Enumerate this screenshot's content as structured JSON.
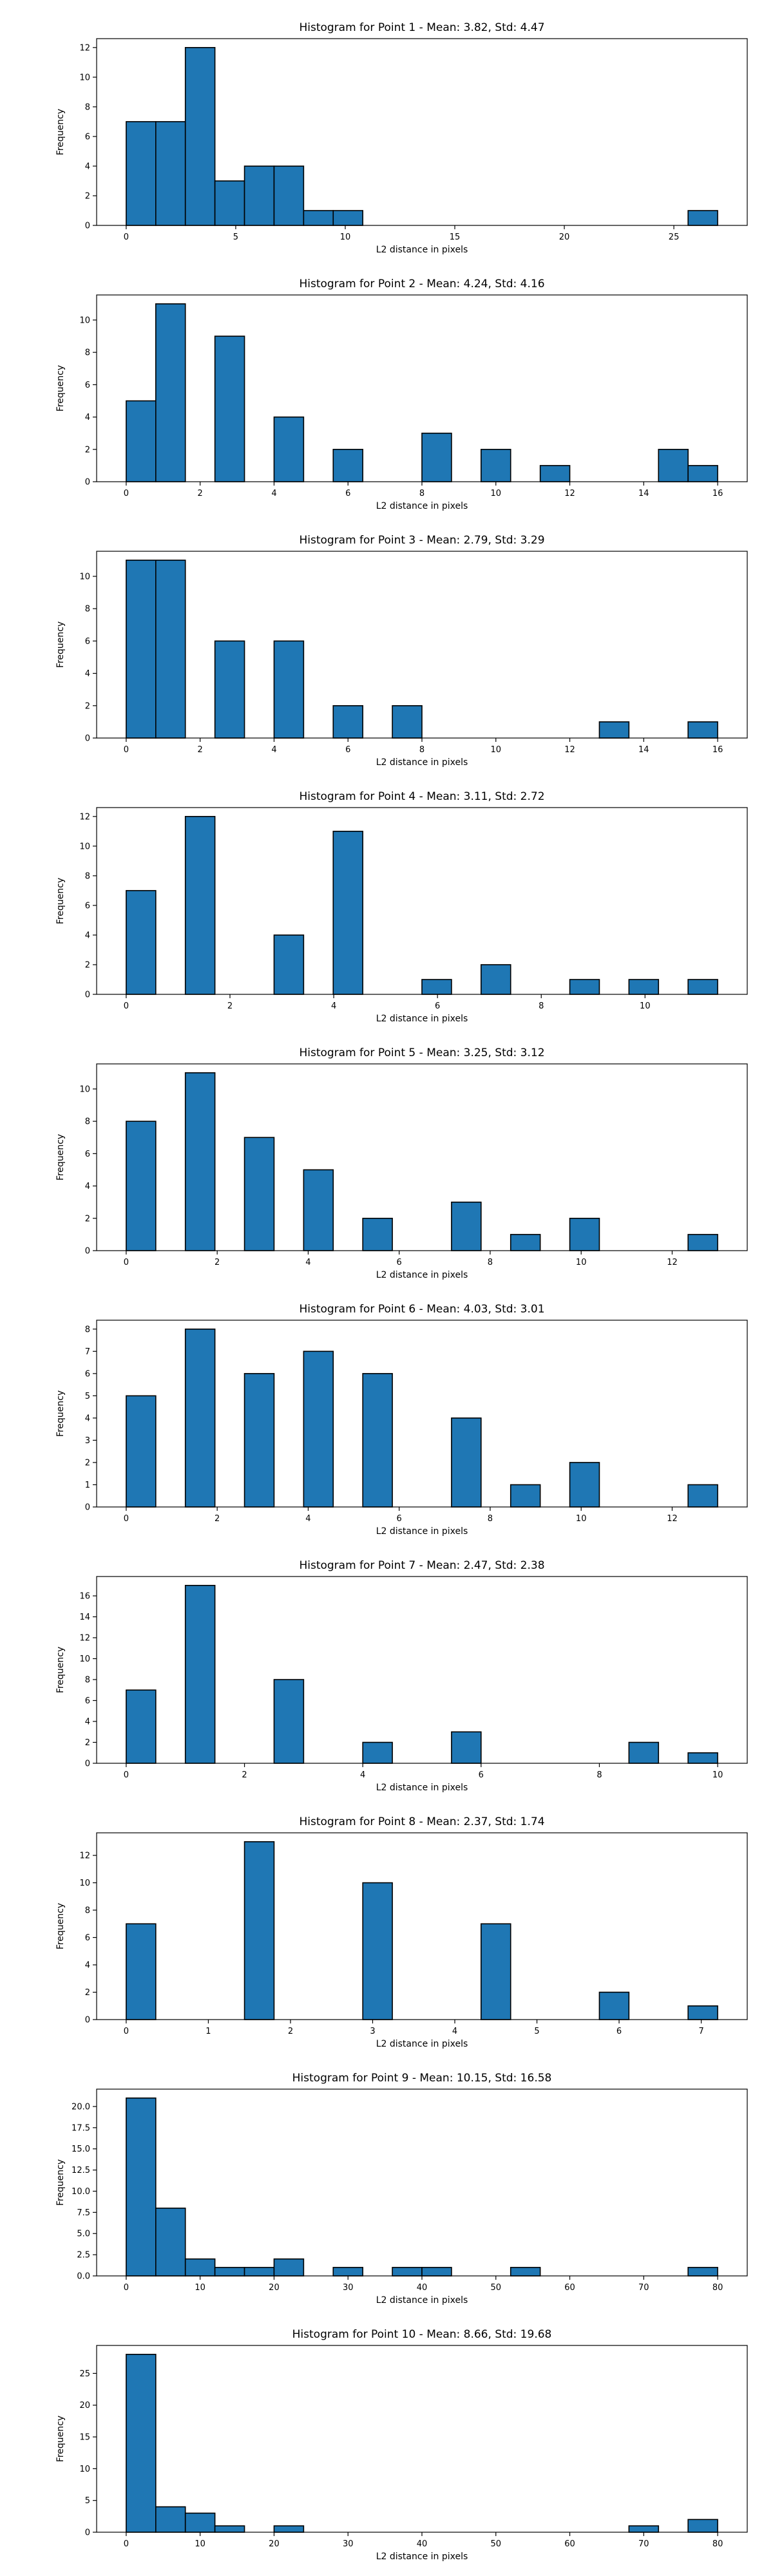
{
  "chart_data": [
    {
      "type": "bar",
      "title": "Histogram for Point 1 - Mean: 3.82, Std: 4.47",
      "xlabel": "L2 distance in pixels",
      "ylabel": "Frequency",
      "xlim": [
        -1.35,
        28.35
      ],
      "ylim": [
        0,
        12.6
      ],
      "xticks": [
        0,
        5,
        10,
        15,
        20,
        25
      ],
      "yticks": [
        0,
        2,
        4,
        6,
        8,
        10,
        12
      ],
      "bins": [
        {
          "x0": 0.0,
          "x1": 1.35,
          "count": 7
        },
        {
          "x0": 1.35,
          "x1": 2.7,
          "count": 7
        },
        {
          "x0": 2.7,
          "x1": 4.05,
          "count": 12
        },
        {
          "x0": 4.05,
          "x1": 5.4,
          "count": 3
        },
        {
          "x0": 5.4,
          "x1": 6.75,
          "count": 4
        },
        {
          "x0": 6.75,
          "x1": 8.1,
          "count": 4
        },
        {
          "x0": 8.1,
          "x1": 9.45,
          "count": 1
        },
        {
          "x0": 9.45,
          "x1": 10.8,
          "count": 1
        },
        {
          "x0": 25.65,
          "x1": 27.0,
          "count": 1
        }
      ]
    },
    {
      "type": "bar",
      "title": "Histogram for Point 2 - Mean: 4.24, Std: 4.16",
      "xlabel": "L2 distance in pixels",
      "ylabel": "Frequency",
      "xlim": [
        -0.8,
        16.8
      ],
      "ylim": [
        0,
        11.55
      ],
      "xticks": [
        0,
        2,
        4,
        6,
        8,
        10,
        12,
        14,
        16
      ],
      "yticks": [
        0,
        2,
        4,
        6,
        8,
        10
      ],
      "bins": [
        {
          "x0": 0.0,
          "x1": 0.8,
          "count": 5
        },
        {
          "x0": 0.8,
          "x1": 1.6,
          "count": 11
        },
        {
          "x0": 2.4,
          "x1": 3.2,
          "count": 9
        },
        {
          "x0": 4.0,
          "x1": 4.8,
          "count": 4
        },
        {
          "x0": 5.6,
          "x1": 6.4,
          "count": 2
        },
        {
          "x0": 8.0,
          "x1": 8.8,
          "count": 3
        },
        {
          "x0": 9.6,
          "x1": 10.4,
          "count": 2
        },
        {
          "x0": 11.2,
          "x1": 12.0,
          "count": 1
        },
        {
          "x0": 14.4,
          "x1": 15.2,
          "count": 2
        },
        {
          "x0": 15.2,
          "x1": 16.0,
          "count": 1
        }
      ]
    },
    {
      "type": "bar",
      "title": "Histogram for Point 3 - Mean: 2.79, Std: 3.29",
      "xlabel": "L2 distance in pixels",
      "ylabel": "Frequency",
      "xlim": [
        -0.8,
        16.8
      ],
      "ylim": [
        0,
        11.55
      ],
      "xticks": [
        0,
        2,
        4,
        6,
        8,
        10,
        12,
        14,
        16
      ],
      "yticks": [
        0,
        2,
        4,
        6,
        8,
        10
      ],
      "bins": [
        {
          "x0": 0.0,
          "x1": 0.8,
          "count": 11
        },
        {
          "x0": 0.8,
          "x1": 1.6,
          "count": 11
        },
        {
          "x0": 2.4,
          "x1": 3.2,
          "count": 6
        },
        {
          "x0": 4.0,
          "x1": 4.8,
          "count": 6
        },
        {
          "x0": 5.6,
          "x1": 6.4,
          "count": 2
        },
        {
          "x0": 7.2,
          "x1": 8.0,
          "count": 2
        },
        {
          "x0": 12.8,
          "x1": 13.6,
          "count": 1
        },
        {
          "x0": 15.2,
          "x1": 16.0,
          "count": 1
        }
      ]
    },
    {
      "type": "bar",
      "title": "Histogram for Point 4 - Mean: 3.11, Std: 2.72",
      "xlabel": "L2 distance in pixels",
      "ylabel": "Frequency",
      "xlim": [
        -0.57,
        11.97
      ],
      "ylim": [
        0,
        12.6
      ],
      "xticks": [
        0,
        2,
        4,
        6,
        8,
        10
      ],
      "yticks": [
        0,
        2,
        4,
        6,
        8,
        10,
        12
      ],
      "bins": [
        {
          "x0": 0.0,
          "x1": 0.57,
          "count": 7
        },
        {
          "x0": 1.14,
          "x1": 1.71,
          "count": 12
        },
        {
          "x0": 2.85,
          "x1": 3.42,
          "count": 4
        },
        {
          "x0": 3.99,
          "x1": 4.56,
          "count": 11
        },
        {
          "x0": 5.7,
          "x1": 6.27,
          "count": 1
        },
        {
          "x0": 6.84,
          "x1": 7.41,
          "count": 2
        },
        {
          "x0": 8.55,
          "x1": 9.12,
          "count": 1
        },
        {
          "x0": 9.69,
          "x1": 10.26,
          "count": 1
        },
        {
          "x0": 10.83,
          "x1": 11.4,
          "count": 1
        }
      ]
    },
    {
      "type": "bar",
      "title": "Histogram for Point 5 - Mean: 3.25, Std: 3.12",
      "xlabel": "L2 distance in pixels",
      "ylabel": "Frequency",
      "xlim": [
        -0.65,
        13.65
      ],
      "ylim": [
        0,
        11.55
      ],
      "xticks": [
        0,
        2,
        4,
        6,
        8,
        10,
        12
      ],
      "yticks": [
        0,
        2,
        4,
        6,
        8,
        10
      ],
      "bins": [
        {
          "x0": 0.0,
          "x1": 0.65,
          "count": 8
        },
        {
          "x0": 1.3,
          "x1": 1.95,
          "count": 11
        },
        {
          "x0": 2.6,
          "x1": 3.25,
          "count": 7
        },
        {
          "x0": 3.9,
          "x1": 4.55,
          "count": 5
        },
        {
          "x0": 5.2,
          "x1": 5.85,
          "count": 2
        },
        {
          "x0": 7.15,
          "x1": 7.8,
          "count": 3
        },
        {
          "x0": 8.45,
          "x1": 9.1,
          "count": 1
        },
        {
          "x0": 9.75,
          "x1": 10.4,
          "count": 2
        },
        {
          "x0": 12.35,
          "x1": 13.0,
          "count": 1
        }
      ]
    },
    {
      "type": "bar",
      "title": "Histogram for Point 6 - Mean: 4.03, Std: 3.01",
      "xlabel": "L2 distance in pixels",
      "ylabel": "Frequency",
      "xlim": [
        -0.65,
        13.65
      ],
      "ylim": [
        0,
        8.4
      ],
      "xticks": [
        0,
        2,
        4,
        6,
        8,
        10,
        12
      ],
      "yticks": [
        0,
        1,
        2,
        3,
        4,
        5,
        6,
        7,
        8
      ],
      "bins": [
        {
          "x0": 0.0,
          "x1": 0.65,
          "count": 5
        },
        {
          "x0": 1.3,
          "x1": 1.95,
          "count": 8
        },
        {
          "x0": 2.6,
          "x1": 3.25,
          "count": 6
        },
        {
          "x0": 3.9,
          "x1": 4.55,
          "count": 7
        },
        {
          "x0": 5.2,
          "x1": 5.85,
          "count": 6
        },
        {
          "x0": 7.15,
          "x1": 7.8,
          "count": 4
        },
        {
          "x0": 8.45,
          "x1": 9.1,
          "count": 1
        },
        {
          "x0": 9.75,
          "x1": 10.4,
          "count": 2
        },
        {
          "x0": 12.35,
          "x1": 13.0,
          "count": 1
        }
      ]
    },
    {
      "type": "bar",
      "title": "Histogram for Point 7 - Mean: 2.47, Std: 2.38",
      "xlabel": "L2 distance in pixels",
      "ylabel": "Frequency",
      "xlim": [
        -0.5,
        10.5
      ],
      "ylim": [
        0,
        17.85
      ],
      "xticks": [
        0,
        2,
        4,
        6,
        8,
        10
      ],
      "yticks": [
        0,
        2,
        4,
        6,
        8,
        10,
        12,
        14,
        16
      ],
      "bins": [
        {
          "x0": 0.0,
          "x1": 0.5,
          "count": 7
        },
        {
          "x0": 1.0,
          "x1": 1.5,
          "count": 17
        },
        {
          "x0": 2.5,
          "x1": 3.0,
          "count": 8
        },
        {
          "x0": 4.0,
          "x1": 4.5,
          "count": 2
        },
        {
          "x0": 5.5,
          "x1": 6.0,
          "count": 3
        },
        {
          "x0": 8.5,
          "x1": 9.0,
          "count": 2
        },
        {
          "x0": 9.5,
          "x1": 10.0,
          "count": 1
        }
      ]
    },
    {
      "type": "bar",
      "title": "Histogram for Point 8 - Mean: 2.37, Std: 1.74",
      "xlabel": "L2 distance in pixels",
      "ylabel": "Frequency",
      "xlim": [
        -0.36,
        7.56
      ],
      "ylim": [
        0,
        13.65
      ],
      "xticks": [
        0,
        1,
        2,
        3,
        4,
        5,
        6,
        7
      ],
      "yticks": [
        0,
        2,
        4,
        6,
        8,
        10,
        12
      ],
      "bins": [
        {
          "x0": 0.0,
          "x1": 0.36,
          "count": 7
        },
        {
          "x0": 1.44,
          "x1": 1.8,
          "count": 13
        },
        {
          "x0": 2.88,
          "x1": 3.24,
          "count": 10
        },
        {
          "x0": 4.32,
          "x1": 4.68,
          "count": 7
        },
        {
          "x0": 5.76,
          "x1": 6.12,
          "count": 2
        },
        {
          "x0": 6.84,
          "x1": 7.2,
          "count": 1
        }
      ]
    },
    {
      "type": "bar",
      "title": "Histogram for Point 9 - Mean: 10.15, Std: 16.58",
      "xlabel": "L2 distance in pixels",
      "ylabel": "Frequency",
      "xlim": [
        -4.0,
        84.0
      ],
      "ylim": [
        0,
        22.05
      ],
      "xticks": [
        0,
        10,
        20,
        30,
        40,
        50,
        60,
        70,
        80
      ],
      "yticks": [
        0,
        2.5,
        5.0,
        7.5,
        10.0,
        12.5,
        15.0,
        17.5,
        20.0
      ],
      "ytick_labels": [
        "0.0",
        "2.5",
        "5.0",
        "7.5",
        "10.0",
        "12.5",
        "15.0",
        "17.5",
        "20.0"
      ],
      "bins": [
        {
          "x0": 0.0,
          "x1": 4.0,
          "count": 21
        },
        {
          "x0": 4.0,
          "x1": 8.0,
          "count": 8
        },
        {
          "x0": 8.0,
          "x1": 12.0,
          "count": 2
        },
        {
          "x0": 12.0,
          "x1": 16.0,
          "count": 1
        },
        {
          "x0": 16.0,
          "x1": 20.0,
          "count": 1
        },
        {
          "x0": 20.0,
          "x1": 24.0,
          "count": 2
        },
        {
          "x0": 28.0,
          "x1": 32.0,
          "count": 1
        },
        {
          "x0": 36.0,
          "x1": 40.0,
          "count": 1
        },
        {
          "x0": 40.0,
          "x1": 44.0,
          "count": 1
        },
        {
          "x0": 52.0,
          "x1": 56.0,
          "count": 1
        },
        {
          "x0": 76.0,
          "x1": 80.0,
          "count": 1
        }
      ]
    },
    {
      "type": "bar",
      "title": "Histogram for Point 10 - Mean: 8.66, Std: 19.68",
      "xlabel": "L2 distance in pixels",
      "ylabel": "Frequency",
      "xlim": [
        -4.0,
        84.0
      ],
      "ylim": [
        0,
        29.4
      ],
      "xticks": [
        0,
        10,
        20,
        30,
        40,
        50,
        60,
        70,
        80
      ],
      "yticks": [
        0,
        5,
        10,
        15,
        20,
        25
      ],
      "bins": [
        {
          "x0": 0.0,
          "x1": 4.0,
          "count": 28
        },
        {
          "x0": 4.0,
          "x1": 8.0,
          "count": 4
        },
        {
          "x0": 8.0,
          "x1": 12.0,
          "count": 3
        },
        {
          "x0": 12.0,
          "x1": 16.0,
          "count": 1
        },
        {
          "x0": 20.0,
          "x1": 24.0,
          "count": 1
        },
        {
          "x0": 68.0,
          "x1": 72.0,
          "count": 1
        },
        {
          "x0": 76.0,
          "x1": 80.0,
          "count": 2
        }
      ]
    }
  ]
}
